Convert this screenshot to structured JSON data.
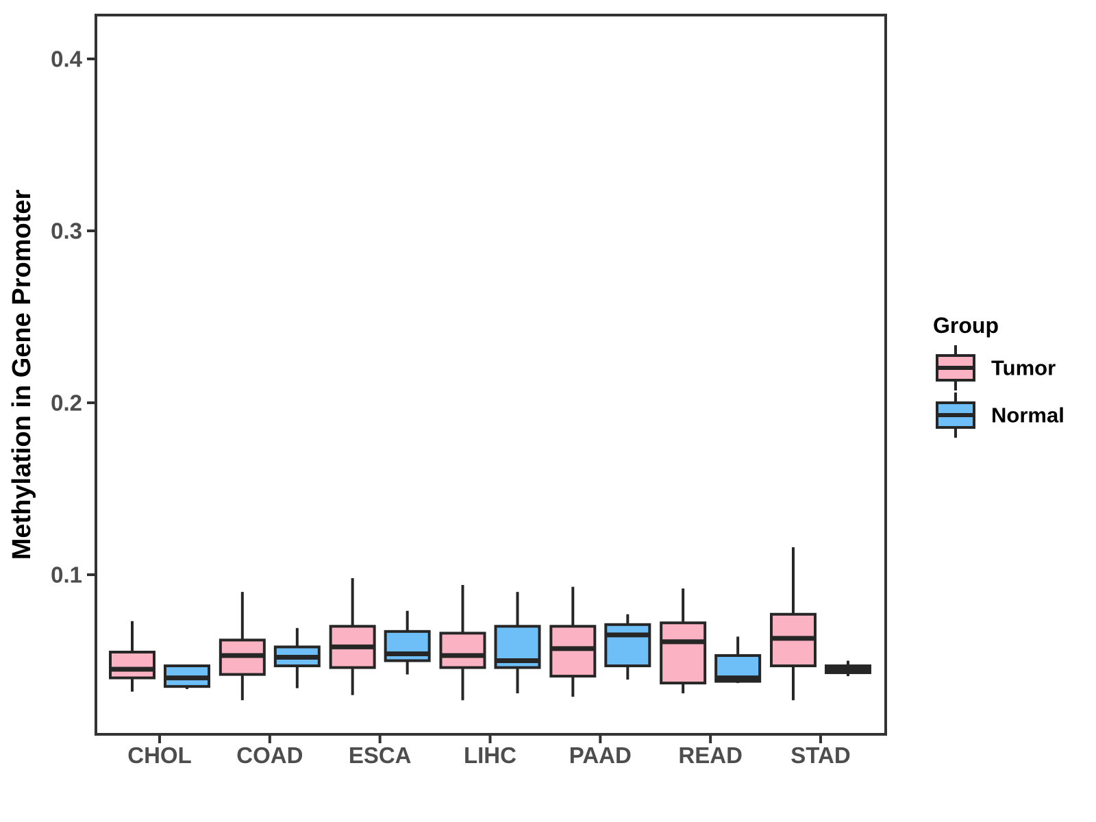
{
  "figure": {
    "background": "#ffffff",
    "panel_border_color": "#333333",
    "box_stroke_color": "#262626"
  },
  "chart_data": {
    "type": "boxplot",
    "title": "",
    "xlabel": "",
    "ylabel": "Methylation in Gene Promoter",
    "categories": [
      "CHOL",
      "COAD",
      "ESCA",
      "LIHC",
      "PAAD",
      "READ",
      "STAD"
    ],
    "y_ticks": [
      0.1,
      0.2,
      0.3,
      0.4
    ],
    "y_tick_labels": [
      "0.1",
      "0.2",
      "0.3",
      "0.4"
    ],
    "ylim": [
      0.007,
      0.426
    ],
    "grid": false,
    "legend_position": "right",
    "legend_title": "Group",
    "series": [
      {
        "name": "Tumor",
        "color": "#FBB3C3",
        "boxes": [
          {
            "category": "CHOL",
            "min": 0.032,
            "q1": 0.04,
            "median": 0.045,
            "q3": 0.055,
            "max": 0.073
          },
          {
            "category": "COAD",
            "min": 0.027,
            "q1": 0.042,
            "median": 0.053,
            "q3": 0.062,
            "max": 0.09
          },
          {
            "category": "ESCA",
            "min": 0.03,
            "q1": 0.046,
            "median": 0.058,
            "q3": 0.07,
            "max": 0.098
          },
          {
            "category": "LIHC",
            "min": 0.027,
            "q1": 0.046,
            "median": 0.053,
            "q3": 0.066,
            "max": 0.094
          },
          {
            "category": "PAAD",
            "min": 0.029,
            "q1": 0.041,
            "median": 0.057,
            "q3": 0.07,
            "max": 0.093
          },
          {
            "category": "READ",
            "min": 0.031,
            "q1": 0.037,
            "median": 0.061,
            "q3": 0.072,
            "max": 0.092
          },
          {
            "category": "STAD",
            "min": 0.027,
            "q1": 0.047,
            "median": 0.063,
            "q3": 0.077,
            "max": 0.116
          }
        ]
      },
      {
        "name": "Normal",
        "color": "#6EBEF7",
        "boxes": [
          {
            "category": "CHOL",
            "min": 0.0335,
            "q1": 0.035,
            "median": 0.04,
            "q3": 0.047,
            "max": 0.047
          },
          {
            "category": "COAD",
            "min": 0.034,
            "q1": 0.047,
            "median": 0.052,
            "q3": 0.058,
            "max": 0.069
          },
          {
            "category": "ESCA",
            "min": 0.042,
            "q1": 0.05,
            "median": 0.054,
            "q3": 0.067,
            "max": 0.079
          },
          {
            "category": "LIHC",
            "min": 0.031,
            "q1": 0.046,
            "median": 0.05,
            "q3": 0.07,
            "max": 0.09
          },
          {
            "category": "PAAD",
            "min": 0.039,
            "q1": 0.047,
            "median": 0.065,
            "q3": 0.071,
            "max": 0.077
          },
          {
            "category": "READ",
            "min": 0.037,
            "q1": 0.038,
            "median": 0.04,
            "q3": 0.053,
            "max": 0.064
          },
          {
            "category": "STAD",
            "min": 0.041,
            "q1": 0.043,
            "median": 0.045,
            "q3": 0.047,
            "max": 0.05
          }
        ]
      }
    ]
  }
}
